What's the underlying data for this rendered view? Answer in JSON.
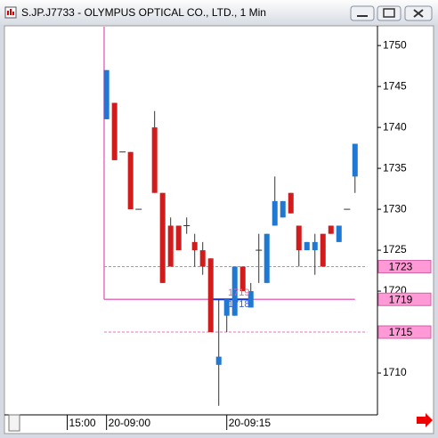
{
  "chart_data": {
    "type": "candlestick",
    "title": "S.JP.J7733 - OLYMPUS OPTICAL CO., LTD., 1 Min",
    "open": [
      1741,
      1743,
      1737,
      1737,
      1730,
      null,
      1740,
      1732,
      1728,
      1728,
      1728,
      1726,
      1725,
      1724,
      1711,
      1717,
      1717,
      1723,
      1718,
      1725,
      1721,
      1728,
      1729,
      1732,
      1728,
      1725,
      1725,
      1727,
      1728,
      1726,
      1730,
      1734
    ],
    "high": [
      1747,
      1743,
      1737,
      1737,
      1730,
      null,
      1742,
      1732,
      1729,
      1728,
      1729,
      1727,
      1726,
      1724,
      1719,
      1719,
      1723,
      1723,
      1721,
      1727,
      1727,
      1734,
      1731,
      1732,
      1728,
      1726,
      1727,
      1727,
      1728,
      1728,
      1730,
      1738
    ],
    "low": [
      1741,
      1736,
      1737,
      1730,
      1730,
      null,
      1732,
      1721,
      1723,
      1725,
      1727,
      1723,
      1722,
      1715,
      1706,
      1715,
      1717,
      1720,
      1718,
      1721,
      1721,
      1728,
      1729,
      1729.5,
      1723,
      1725,
      1722,
      1723,
      1727,
      1726,
      1730,
      1732
    ],
    "close": [
      1747,
      1736,
      1737,
      1730,
      1730,
      null,
      1732,
      1721,
      1723,
      1725,
      1728,
      1725,
      1723,
      1715,
      1712,
      1719,
      1723,
      1720,
      1720,
      1725,
      1727,
      1731,
      1731,
      1729.5,
      1725,
      1726,
      1726,
      1723,
      1727,
      1728,
      1730,
      1738
    ],
    "up_color": "#1f78d1",
    "down_color": "#d01c1c",
    "xlim": [
      -12.4,
      33.8
    ],
    "xticks": [
      {
        "value": -4.9,
        "label": "15:00"
      },
      {
        "value": 0,
        "label": "20-09:00"
      },
      {
        "value": 15,
        "label": "20-09:15"
      }
    ],
    "ylim": [
      1705,
      1752.3
    ],
    "yticks": [
      1710,
      1715,
      1720,
      1725,
      1730,
      1735,
      1740,
      1745,
      1750
    ],
    "levels": [
      {
        "value": 1723,
        "style": "dashed",
        "color": "#e870c0"
      },
      {
        "value": 1719,
        "style": "solid",
        "color": "#e870c0"
      },
      {
        "value": 1715,
        "style": "dashed",
        "color": "#e870c0"
      }
    ],
    "annotations": [
      "1719",
      "1718"
    ]
  }
}
